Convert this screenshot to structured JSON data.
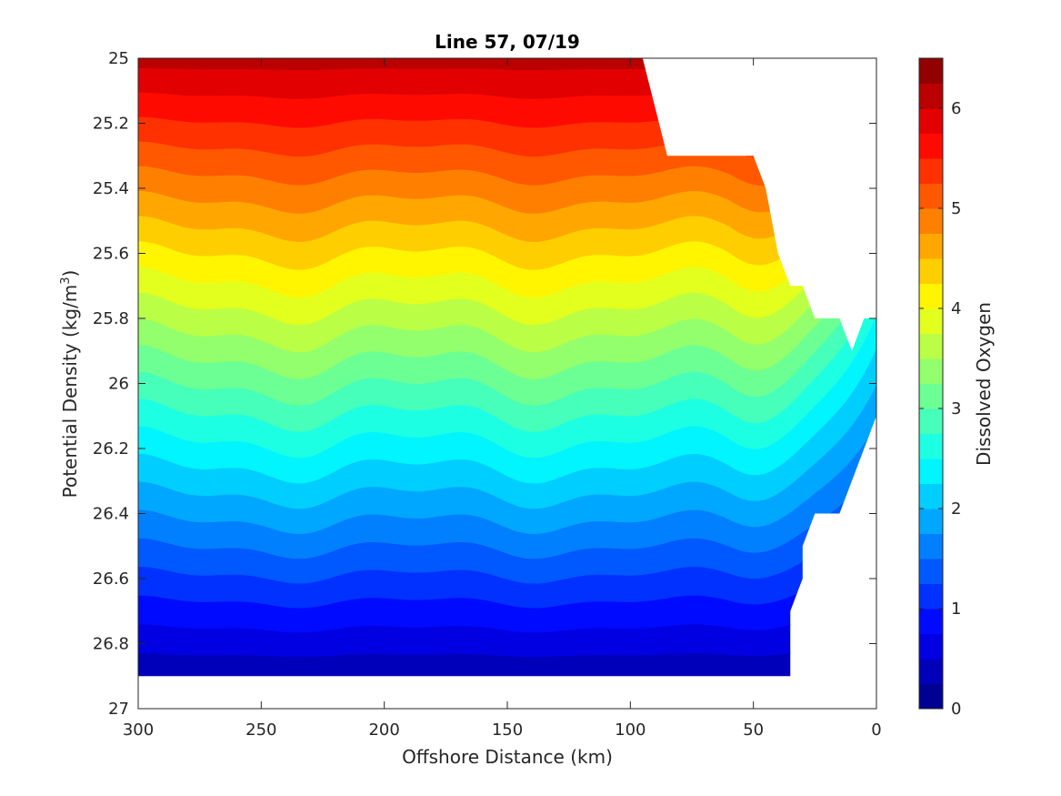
{
  "chart_data": {
    "type": "filled-contour",
    "title": "Line 57, 07/19",
    "xlabel": "Offshore Distance (km)",
    "ylabel_main": "Potential Density (kg/m",
    "ylabel_sup": "3",
    "ylabel_end": ")",
    "colorbar_label": "Dissolved Oxygen",
    "colormap": "jet",
    "x_range": [
      300,
      0
    ],
    "x_reversed": true,
    "y_range": [
      25,
      27
    ],
    "y_reversed": true,
    "x_ticks": [
      "300",
      "250",
      "200",
      "150",
      "100",
      "50",
      "0"
    ],
    "x_tick_values": [
      300,
      250,
      200,
      150,
      100,
      50,
      0
    ],
    "y_ticks": [
      "25",
      "25.2",
      "25.4",
      "25.6",
      "25.8",
      "26",
      "26.2",
      "26.4",
      "26.6",
      "26.8",
      "27"
    ],
    "y_tick_values": [
      25,
      25.2,
      25.4,
      25.6,
      25.8,
      26,
      26.2,
      26.4,
      26.6,
      26.8,
      27
    ],
    "colorbar_range": [
      0,
      6.5
    ],
    "colorbar_ticks": [
      "0",
      "1",
      "2",
      "3",
      "4",
      "5",
      "6"
    ],
    "colorbar_tick_values": [
      0,
      1,
      2,
      3,
      4,
      5,
      6
    ],
    "contour_levels": [
      0,
      0.25,
      0.5,
      0.75,
      1,
      1.25,
      1.5,
      1.75,
      2,
      2.25,
      2.5,
      2.75,
      3,
      3.25,
      3.5,
      3.75,
      4,
      4.25,
      4.5,
      4.75,
      5,
      5.25,
      5.5,
      5.75,
      6,
      6.25,
      6.5
    ],
    "section_top_boundary": {
      "x": [
        300,
        100,
        95,
        85,
        80,
        75,
        50,
        45,
        40,
        35,
        30,
        25,
        15,
        10,
        5,
        0
      ],
      "y": [
        25.0,
        25.0,
        25.0,
        25.3,
        25.3,
        25.3,
        25.3,
        25.4,
        25.6,
        25.7,
        25.7,
        25.8,
        25.8,
        25.9,
        25.8,
        25.8
      ]
    },
    "section_bottom_boundary": {
      "x": [
        300,
        35,
        35,
        30,
        30,
        25,
        15,
        10,
        5,
        0
      ],
      "y": [
        26.9,
        26.9,
        26.7,
        26.6,
        26.5,
        26.4,
        26.4,
        26.3,
        26.2,
        26.1
      ]
    },
    "oxygen_at_25": 6.1,
    "oxygen_at_26_9": 0.3
  }
}
